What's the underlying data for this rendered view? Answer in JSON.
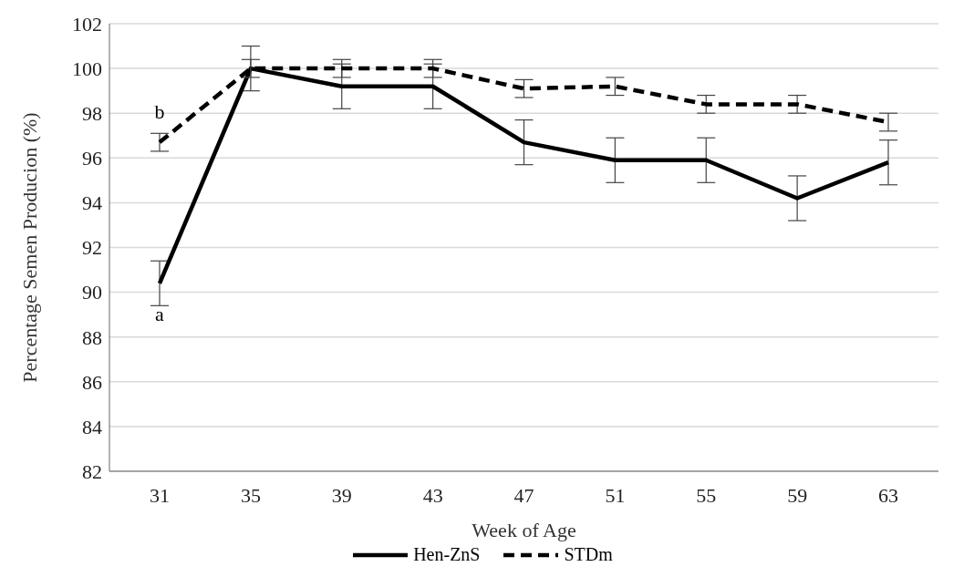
{
  "chart_data": {
    "type": "line",
    "xlabel": "Week of Age",
    "ylabel": "Percentage Semen Producion (%)",
    "categories": [
      "31",
      "35",
      "39",
      "43",
      "47",
      "51",
      "55",
      "59",
      "63"
    ],
    "series": [
      {
        "name": "Hen-ZnS",
        "color": "#000000",
        "line_style": "solid",
        "values": [
          90.4,
          100,
          99.2,
          99.2,
          96.7,
          95.9,
          95.9,
          94.2,
          95.8
        ],
        "errors": [
          1,
          1,
          1,
          1,
          1,
          1,
          1,
          1,
          1
        ]
      },
      {
        "name": "STDm",
        "color": "#000000",
        "line_style": "dashed",
        "values": [
          96.7,
          100,
          100,
          100,
          99.1,
          99.2,
          98.4,
          98.4,
          97.6
        ],
        "errors": [
          0.4,
          0.4,
          0.4,
          0.4,
          0.4,
          0.4,
          0.4,
          0.4,
          0.4
        ]
      }
    ],
    "annotations": [
      {
        "text": "b",
        "x": "31",
        "y": 96.7
      },
      {
        "text": "a",
        "x": "31",
        "y": 90.4
      }
    ],
    "ylim": [
      82,
      102
    ],
    "yticks": [
      82,
      84,
      86,
      88,
      90,
      92,
      94,
      96,
      98,
      100,
      102
    ],
    "grid": "y",
    "legend": "bottom",
    "marker": "none"
  }
}
